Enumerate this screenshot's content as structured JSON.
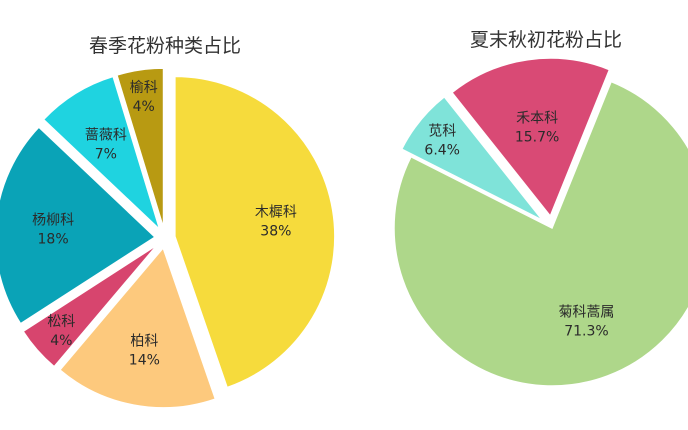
{
  "colors": {
    "slice_stroke": "#ffffff",
    "label_text": "#2b2b2b",
    "title_text": "#333333"
  },
  "chart_data": [
    {
      "type": "pie",
      "title": "春季花粉种类占比",
      "slices": [
        {
          "label": "木樨科",
          "value": 38,
          "value_label": "38%",
          "color": "#f6db3c",
          "exploded": true
        },
        {
          "label": "柏科",
          "value": 14,
          "value_label": "14%",
          "color": "#fdc97d",
          "exploded": true
        },
        {
          "label": "松科",
          "value": 4,
          "value_label": "4%",
          "color": "#d7456e",
          "exploded": true
        },
        {
          "label": "杨柳科",
          "value": 18,
          "value_label": "18%",
          "color": "#0aa3b7",
          "exploded": true
        },
        {
          "label": "蔷薇科",
          "value": 7,
          "value_label": "7%",
          "color": "#1fd3e0",
          "exploded": true
        },
        {
          "label": "榆科",
          "value": 4,
          "value_label": "4%",
          "color": "#b89a12",
          "exploded": true
        }
      ]
    },
    {
      "type": "pie",
      "title": "夏末秋初花粉占比",
      "slices": [
        {
          "label": "菊科蒿属",
          "value": 71.3,
          "value_label": "71.3%",
          "color": "#aed78a",
          "exploded": false
        },
        {
          "label": "苋科",
          "value": 6.4,
          "value_label": "6.4%",
          "color": "#7fe3d9",
          "exploded": true
        },
        {
          "label": "禾本科",
          "value": 15.7,
          "value_label": "15.7%",
          "color": "#d94a75",
          "exploded": true
        }
      ]
    }
  ]
}
